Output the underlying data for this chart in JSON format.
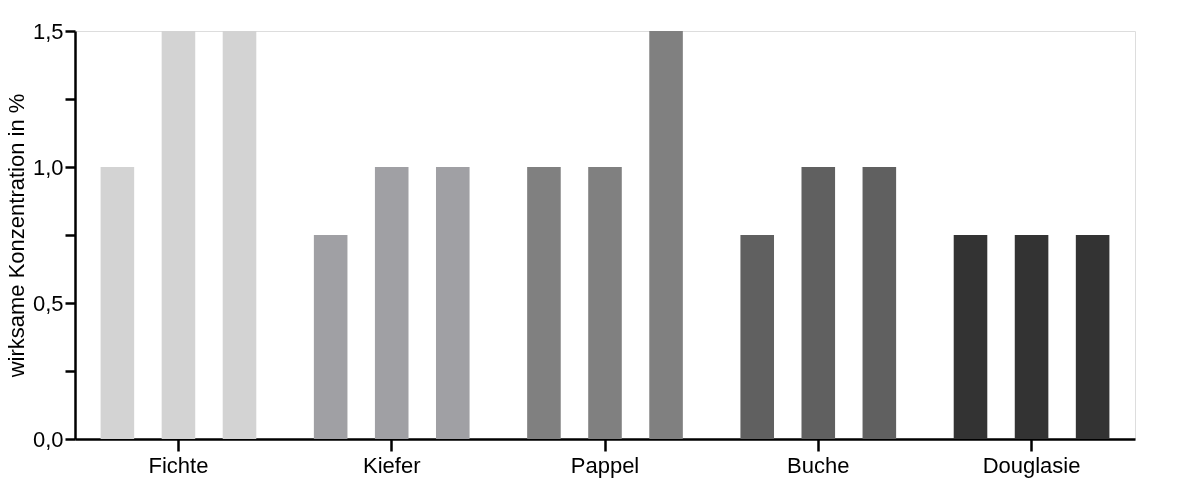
{
  "chart_data": {
    "type": "bar",
    "ylabel": "wirksame Konzentration in %",
    "categories": [
      "Fichte",
      "Kiefer",
      "Pappel",
      "Buche",
      "Douglasie"
    ],
    "series": [
      {
        "colors": [
          "#d3d3d3",
          "#a0a0a4",
          "#808080",
          "#606060",
          "#333333"
        ],
        "values": [
          1.0,
          0.75,
          1.0,
          0.75,
          0.75
        ]
      },
      {
        "colors": [
          "#d3d3d3",
          "#a0a0a4",
          "#808080",
          "#606060",
          "#333333"
        ],
        "values": [
          1.5,
          1.0,
          1.0,
          1.0,
          0.75
        ]
      },
      {
        "colors": [
          "#d3d3d3",
          "#a0a0a4",
          "#808080",
          "#606060",
          "#333333"
        ],
        "values": [
          1.5,
          1.0,
          1.5,
          1.0,
          0.75
        ]
      }
    ],
    "ylim": [
      0,
      1.5
    ],
    "yticks": [
      {
        "value": 0,
        "label": "0,0"
      },
      {
        "value": 0.25,
        "label": null
      },
      {
        "value": 0.5,
        "label": "0,5"
      },
      {
        "value": 0.75,
        "label": null
      },
      {
        "value": 1.0,
        "label": "1,0"
      },
      {
        "value": 1.25,
        "label": null
      },
      {
        "value": 1.5,
        "label": "1,5"
      }
    ]
  }
}
